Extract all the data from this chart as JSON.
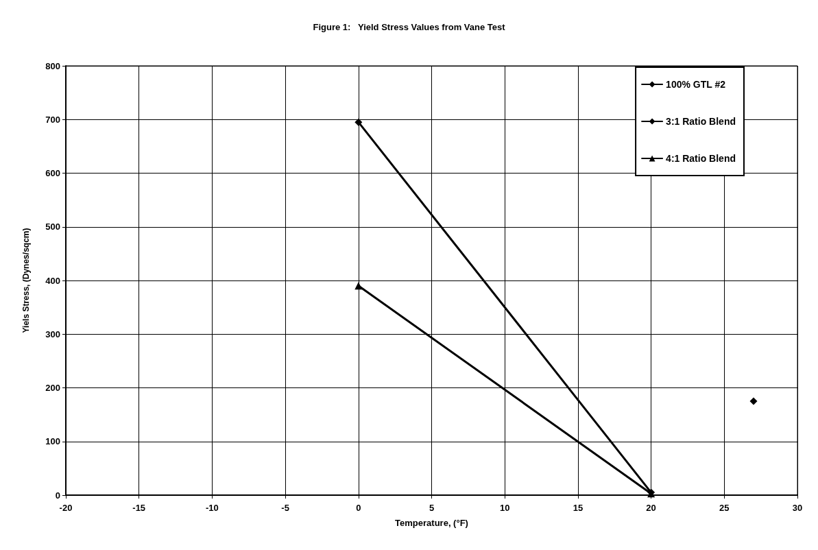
{
  "chart_data": {
    "type": "line",
    "title": "Figure 1:   Yield Stress Values from Vane Test",
    "xlabel": "Temperature, (°F)",
    "ylabel": "Yiels Stress, (Dynes/sqcm)",
    "series": [
      {
        "name": "100% GTL #2",
        "color": "#000000",
        "marker": "diamond",
        "x": [
          27
        ],
        "values": [
          175
        ]
      },
      {
        "name": "3:1 Ratio Blend",
        "color": "#000000",
        "marker": "diamond",
        "x": [
          0,
          20
        ],
        "values": [
          695,
          5
        ]
      },
      {
        "name": "4:1 Ratio Blend",
        "color": "#000000",
        "marker": "triangle",
        "x": [
          0,
          20
        ],
        "values": [
          390,
          3
        ]
      }
    ],
    "xlim": [
      -20,
      30
    ],
    "xticks": [
      -20,
      -15,
      -10,
      -5,
      0,
      5,
      10,
      15,
      20,
      25,
      30
    ],
    "ylim": [
      0,
      800
    ],
    "yticks": [
      0,
      100,
      200,
      300,
      400,
      500,
      600,
      700,
      800
    ],
    "grid": true,
    "legend": "top right",
    "line_style": "solid"
  }
}
